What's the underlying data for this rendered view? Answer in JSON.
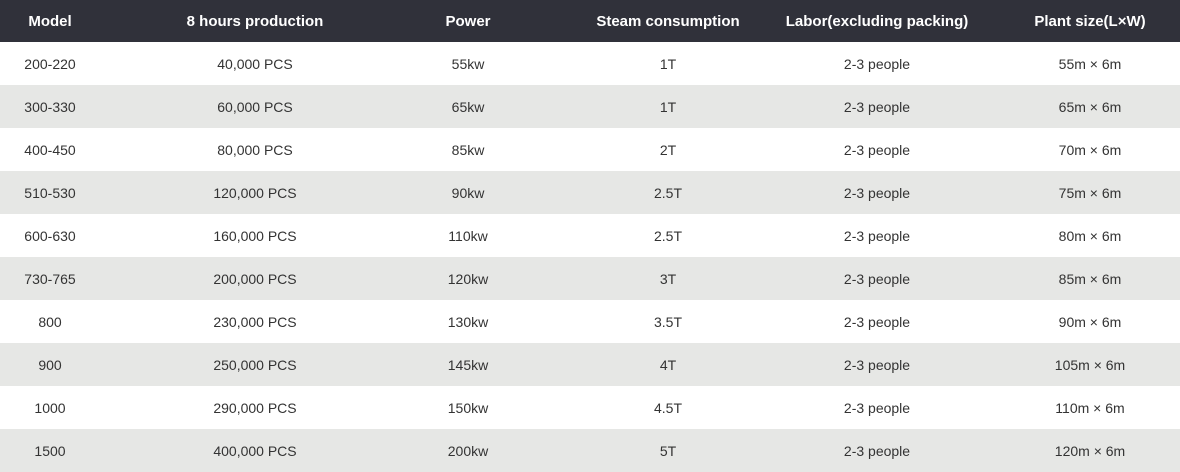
{
  "table": {
    "header": [
      "Model",
      "8 hours production",
      "Power",
      "Steam consumption",
      "Labor(excluding packing)",
      "Plant size(L×W)"
    ],
    "rows": [
      [
        "200-220",
        "40,000 PCS",
        "55kw",
        "1T",
        "2-3 people",
        "55m × 6m"
      ],
      [
        "300-330",
        "60,000 PCS",
        "65kw",
        "1T",
        "2-3 people",
        "65m × 6m"
      ],
      [
        "400-450",
        "80,000 PCS",
        "85kw",
        "2T",
        "2-3 people",
        "70m × 6m"
      ],
      [
        "510-530",
        "120,000 PCS",
        "90kw",
        "2.5T",
        "2-3 people",
        "75m × 6m"
      ],
      [
        "600-630",
        "160,000 PCS",
        "110kw",
        "2.5T",
        "2-3 people",
        "80m × 6m"
      ],
      [
        "730-765",
        "200,000 PCS",
        "120kw",
        "3T",
        "2-3 people",
        "85m × 6m"
      ],
      [
        "800",
        "230,000 PCS",
        "130kw",
        "3.5T",
        "2-3 people",
        "90m × 6m"
      ],
      [
        "900",
        "250,000 PCS",
        "145kw",
        "4T",
        "2-3 people",
        "105m × 6m"
      ],
      [
        "1000",
        "290,000 PCS",
        "150kw",
        "4.5T",
        "2-3 people",
        "110m × 6m"
      ],
      [
        "1500",
        "400,000 PCS",
        "200kw",
        "5T",
        "2-3 people",
        "120m × 6m"
      ]
    ]
  }
}
